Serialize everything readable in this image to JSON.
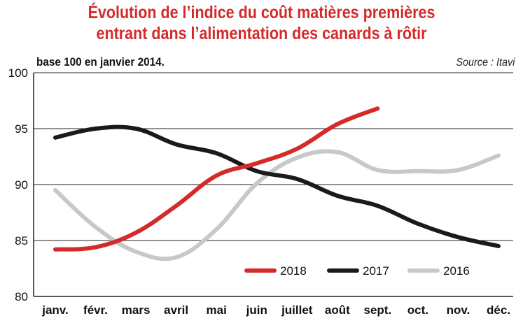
{
  "header": {
    "title_line1": "Évolution de l’indice du coût matières premières",
    "title_line2": "entrant dans l’alimentation des canards à rôtir",
    "subtitle": "base 100 en janvier 2014.",
    "source": "Source : Itavi"
  },
  "colors": {
    "title": "#d42a2a",
    "s2018": "#d42a2a",
    "s2017": "#1a1a1a",
    "s2016": "#c8c8c8",
    "grid": "#222222"
  },
  "chart_data": {
    "type": "line",
    "title": "Évolution de l’indice du coût matières premières entrant dans l’alimentation des canards à rôtir",
    "subtitle": "base 100 en janvier 2014.",
    "xlabel": "",
    "ylabel": "",
    "categories": [
      "janv.",
      "févr.",
      "mars",
      "avril",
      "mai",
      "juin",
      "juillet",
      "août",
      "sept.",
      "oct.",
      "nov.",
      "déc."
    ],
    "ylim": [
      80,
      100
    ],
    "yticks": [
      80,
      85,
      90,
      95,
      100
    ],
    "grid": "horizontal",
    "legend_position": "bottom-right",
    "series": [
      {
        "name": "2018",
        "color": "#d42a2a",
        "values": [
          84.2,
          84.4,
          85.7,
          88.1,
          90.8,
          91.9,
          93.2,
          95.4,
          96.8,
          null,
          null,
          null
        ]
      },
      {
        "name": "2017",
        "color": "#1a1a1a",
        "values": [
          94.2,
          95.0,
          95.0,
          93.6,
          92.8,
          91.2,
          90.5,
          89.0,
          88.1,
          86.5,
          85.3,
          84.5
        ]
      },
      {
        "name": "2016",
        "color": "#c8c8c8",
        "values": [
          89.5,
          86.2,
          84.0,
          83.5,
          86.0,
          90.1,
          92.4,
          92.9,
          91.3,
          91.2,
          91.3,
          92.6
        ]
      }
    ]
  }
}
